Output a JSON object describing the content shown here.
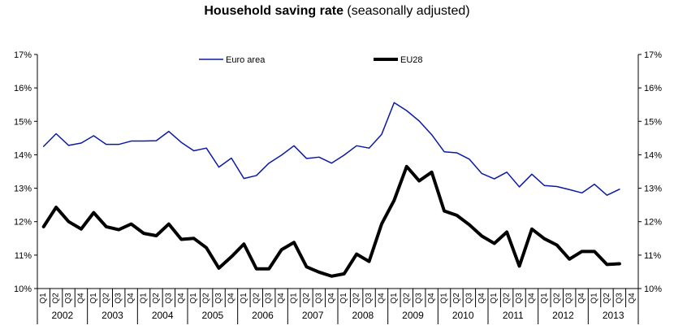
{
  "chart_data": {
    "type": "line",
    "title_bold": "Household saving rate",
    "title_rest": " (seasonally adjusted)",
    "y_ticks": [
      "10%",
      "11%",
      "12%",
      "13%",
      "14%",
      "15%",
      "16%",
      "17%"
    ],
    "ylim": [
      10,
      17
    ],
    "quarters": [
      "Q1",
      "Q2",
      "Q3",
      "Q4"
    ],
    "years": [
      "2002",
      "2003",
      "2004",
      "2005",
      "2006",
      "2007",
      "2008",
      "2009",
      "2010",
      "2011",
      "2012",
      "2013"
    ],
    "series": [
      {
        "name": "Euro area",
        "color": "#0b1aa6",
        "values": [
          14.25,
          14.63,
          14.28,
          14.35,
          14.57,
          14.31,
          14.31,
          14.41,
          14.41,
          14.42,
          14.7,
          14.37,
          14.12,
          14.2,
          13.63,
          13.9,
          13.29,
          13.38,
          13.75,
          13.99,
          14.27,
          13.89,
          13.93,
          13.75,
          13.99,
          14.27,
          14.2,
          14.61,
          15.56,
          15.32,
          15.01,
          14.6,
          14.09,
          14.06,
          13.87,
          13.44,
          13.28,
          13.48,
          13.04,
          13.42,
          13.08,
          13.05,
          12.96,
          12.86,
          13.12,
          12.79,
          12.97,
          null
        ]
      },
      {
        "name": "EU28",
        "color": "#000000",
        "values": [
          11.85,
          12.43,
          12.0,
          11.78,
          12.27,
          11.85,
          11.76,
          11.93,
          11.65,
          11.58,
          11.93,
          11.47,
          11.5,
          11.22,
          10.61,
          10.95,
          11.33,
          10.59,
          10.59,
          11.16,
          11.38,
          10.65,
          10.49,
          10.37,
          10.44,
          11.03,
          10.81,
          11.93,
          12.64,
          13.65,
          13.22,
          13.48,
          12.32,
          12.19,
          11.91,
          11.57,
          11.35,
          11.69,
          10.67,
          11.78,
          11.49,
          11.3,
          10.88,
          11.11,
          11.11,
          10.72,
          10.74,
          null
        ]
      }
    ]
  }
}
